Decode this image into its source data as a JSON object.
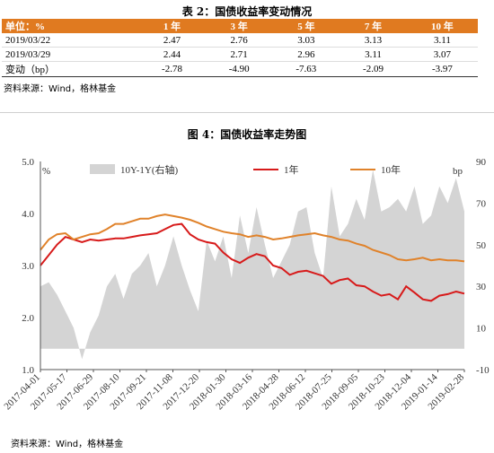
{
  "table": {
    "title": "表 2：国债收益率变动情况",
    "headers": [
      "单位：%",
      "1 年",
      "3 年",
      "5 年",
      "7 年",
      "10 年"
    ],
    "rows": [
      [
        "2019/03/22",
        "2.47",
        "2.76",
        "3.03",
        "3.13",
        "3.11"
      ],
      [
        "2019/03/29",
        "2.44",
        "2.71",
        "2.96",
        "3.11",
        "3.07"
      ],
      [
        "变动（bp）",
        "-2.78",
        "-4.90",
        "-7.63",
        "-2.09",
        "-3.97"
      ]
    ],
    "source": "资料来源：Wind，格林基金"
  },
  "chart_title": "图 4：国债收益率走势图",
  "chart_source": "资料来源：Wind，格林基金",
  "chart_data": {
    "type": "line",
    "title": "图 4：国债收益率走势图",
    "left_axis": {
      "unit": "%",
      "ylim": [
        1.0,
        5.0
      ],
      "ticks": [
        "1.0",
        "2.0",
        "3.0",
        "4.0",
        "5.0"
      ]
    },
    "right_axis": {
      "unit": "bp",
      "ylim": [
        -10,
        90
      ],
      "ticks": [
        "-10",
        "10",
        "30",
        "50",
        "70",
        "90"
      ]
    },
    "x_ticks": [
      "2017-04-01",
      "2017-05-17",
      "2017-06-29",
      "2017-08-10",
      "2017-09-21",
      "2017-11-08",
      "2017-12-20",
      "2018-01-30",
      "2018-03-16",
      "2018-04-28",
      "2018-06-12",
      "2018-07-25",
      "2018-09-05",
      "2018-10-23",
      "2018-12-04",
      "2019-01-14",
      "2019-02-28"
    ],
    "legend": [
      "10Y-1Y(右轴)",
      "1年",
      "10年"
    ],
    "legend_position": "top",
    "series": [
      {
        "name": "10Y-1Y(右轴)",
        "axis": "right",
        "type": "area",
        "color": "#d4d4d4",
        "values": [
          30,
          32,
          26,
          18,
          10,
          -5,
          8,
          16,
          30,
          36,
          24,
          36,
          40,
          46,
          30,
          40,
          54,
          40,
          28,
          18,
          52,
          42,
          54,
          34,
          64,
          46,
          68,
          50,
          34,
          42,
          50,
          66,
          68,
          46,
          34,
          78,
          54,
          60,
          72,
          62,
          86,
          66,
          68,
          72,
          66,
          78,
          60,
          64,
          78,
          70,
          82,
          66
        ]
      },
      {
        "name": "1年",
        "axis": "left",
        "type": "line",
        "color": "#d71a1a",
        "values": [
          3.0,
          3.2,
          3.4,
          3.55,
          3.5,
          3.45,
          3.5,
          3.48,
          3.5,
          3.52,
          3.52,
          3.55,
          3.58,
          3.6,
          3.62,
          3.7,
          3.78,
          3.8,
          3.6,
          3.5,
          3.45,
          3.42,
          3.25,
          3.12,
          3.05,
          3.15,
          3.22,
          3.18,
          3.0,
          2.95,
          2.82,
          2.88,
          2.9,
          2.85,
          2.8,
          2.65,
          2.72,
          2.75,
          2.62,
          2.6,
          2.5,
          2.42,
          2.45,
          2.35,
          2.6,
          2.48,
          2.35,
          2.32,
          2.42,
          2.45,
          2.5,
          2.46
        ]
      },
      {
        "name": "10年",
        "axis": "left",
        "type": "line",
        "color": "#e0822a",
        "values": [
          3.3,
          3.5,
          3.6,
          3.62,
          3.5,
          3.55,
          3.6,
          3.62,
          3.7,
          3.8,
          3.8,
          3.85,
          3.9,
          3.9,
          3.95,
          3.98,
          3.95,
          3.92,
          3.88,
          3.82,
          3.75,
          3.7,
          3.65,
          3.62,
          3.6,
          3.55,
          3.58,
          3.55,
          3.5,
          3.52,
          3.55,
          3.58,
          3.6,
          3.62,
          3.58,
          3.55,
          3.5,
          3.48,
          3.42,
          3.38,
          3.3,
          3.25,
          3.2,
          3.12,
          3.1,
          3.12,
          3.15,
          3.1,
          3.12,
          3.1,
          3.1,
          3.08
        ]
      }
    ]
  }
}
